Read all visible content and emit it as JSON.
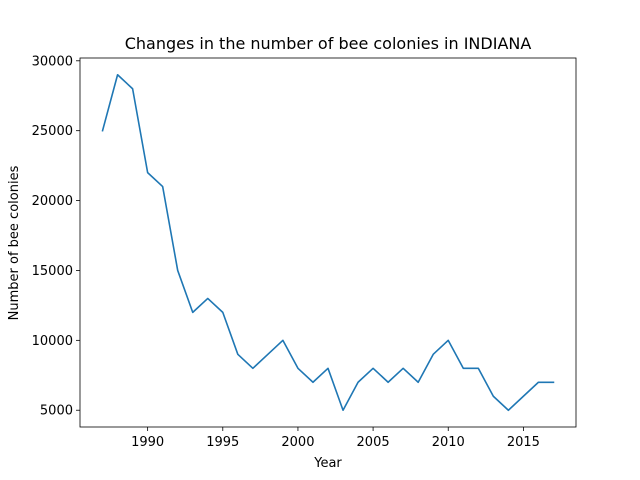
{
  "chart_data": {
    "type": "line",
    "title": "Changes in the number of bee colonies in INDIANA",
    "xlabel": "Year",
    "ylabel": "Number of bee colonies",
    "xlim": [
      1985.5,
      2018.5
    ],
    "ylim": [
      3800,
      30200
    ],
    "x_ticks": [
      1990,
      1995,
      2000,
      2005,
      2010,
      2015
    ],
    "y_ticks": [
      5000,
      10000,
      15000,
      20000,
      25000,
      30000
    ],
    "grid": false,
    "legend": "none",
    "series": [
      {
        "color": "#1f77b4",
        "x": [
          1987,
          1988,
          1989,
          1990,
          1991,
          1992,
          1993,
          1994,
          1995,
          1996,
          1997,
          1998,
          1999,
          2000,
          2001,
          2002,
          2003,
          2004,
          2005,
          2006,
          2007,
          2008,
          2009,
          2010,
          2011,
          2012,
          2013,
          2014,
          2015,
          2016,
          2017
        ],
        "values": [
          25000,
          29000,
          28000,
          22000,
          21000,
          15000,
          12000,
          13000,
          12000,
          9000,
          8000,
          9000,
          10000,
          8000,
          7000,
          8000,
          5000,
          7000,
          8000,
          7000,
          8000,
          7000,
          9000,
          10000,
          8000,
          8000,
          6000,
          5000,
          6000,
          7000,
          7000
        ]
      }
    ]
  }
}
